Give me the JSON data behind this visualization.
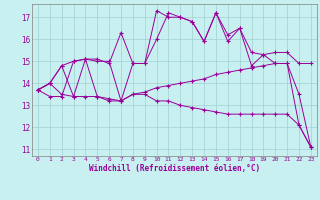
{
  "xlabel": "Windchill (Refroidissement éolien,°C)",
  "background_color": "#c8f0f0",
  "line_color": "#990099",
  "xlim": [
    -0.5,
    23.5
  ],
  "ylim": [
    10.7,
    17.6
  ],
  "yticks": [
    11,
    12,
    13,
    14,
    15,
    16,
    17
  ],
  "xticks": [
    0,
    1,
    2,
    3,
    4,
    5,
    6,
    7,
    8,
    9,
    10,
    11,
    12,
    13,
    14,
    15,
    16,
    17,
    18,
    19,
    20,
    21,
    22,
    23
  ],
  "series": [
    {
      "x": [
        0,
        1,
        2,
        3,
        4,
        5,
        6,
        7,
        8,
        9,
        10,
        11,
        12,
        13,
        14,
        15,
        16,
        17,
        18,
        19,
        20,
        21,
        22,
        23
      ],
      "y": [
        13.7,
        14.0,
        14.8,
        15.0,
        15.1,
        15.1,
        14.9,
        16.3,
        14.9,
        14.9,
        17.3,
        17.0,
        17.0,
        16.8,
        15.9,
        17.2,
        16.2,
        16.5,
        15.4,
        15.3,
        15.4,
        15.4,
        14.9,
        14.9
      ]
    },
    {
      "x": [
        0,
        1,
        2,
        3,
        4,
        5,
        6,
        7,
        8,
        9,
        10,
        11,
        12,
        13,
        14,
        15,
        16,
        17,
        18,
        19,
        20,
        21,
        22,
        23
      ],
      "y": [
        13.7,
        14.0,
        14.8,
        13.4,
        15.1,
        15.0,
        15.0,
        13.2,
        14.9,
        14.9,
        16.0,
        17.2,
        17.0,
        16.8,
        15.9,
        17.2,
        15.9,
        16.5,
        14.8,
        15.3,
        14.9,
        14.9,
        12.1,
        11.1
      ]
    },
    {
      "x": [
        0,
        1,
        2,
        3,
        4,
        5,
        6,
        7,
        8,
        9,
        10,
        11,
        12,
        13,
        14,
        15,
        16,
        17,
        18,
        19,
        20,
        21,
        22,
        23
      ],
      "y": [
        13.7,
        13.4,
        13.4,
        15.0,
        15.1,
        13.4,
        13.2,
        13.2,
        13.5,
        13.5,
        13.2,
        13.2,
        13.0,
        12.9,
        12.8,
        12.7,
        12.6,
        12.6,
        12.6,
        12.6,
        12.6,
        12.6,
        12.1,
        11.1
      ]
    },
    {
      "x": [
        0,
        1,
        2,
        3,
        4,
        5,
        6,
        7,
        8,
        9,
        10,
        11,
        12,
        13,
        14,
        15,
        16,
        17,
        18,
        19,
        20,
        21,
        22,
        23
      ],
      "y": [
        13.7,
        14.0,
        13.5,
        13.4,
        13.4,
        13.4,
        13.3,
        13.2,
        13.5,
        13.6,
        13.8,
        13.9,
        14.0,
        14.1,
        14.2,
        14.4,
        14.5,
        14.6,
        14.7,
        14.8,
        14.9,
        14.9,
        13.5,
        11.1
      ]
    }
  ]
}
